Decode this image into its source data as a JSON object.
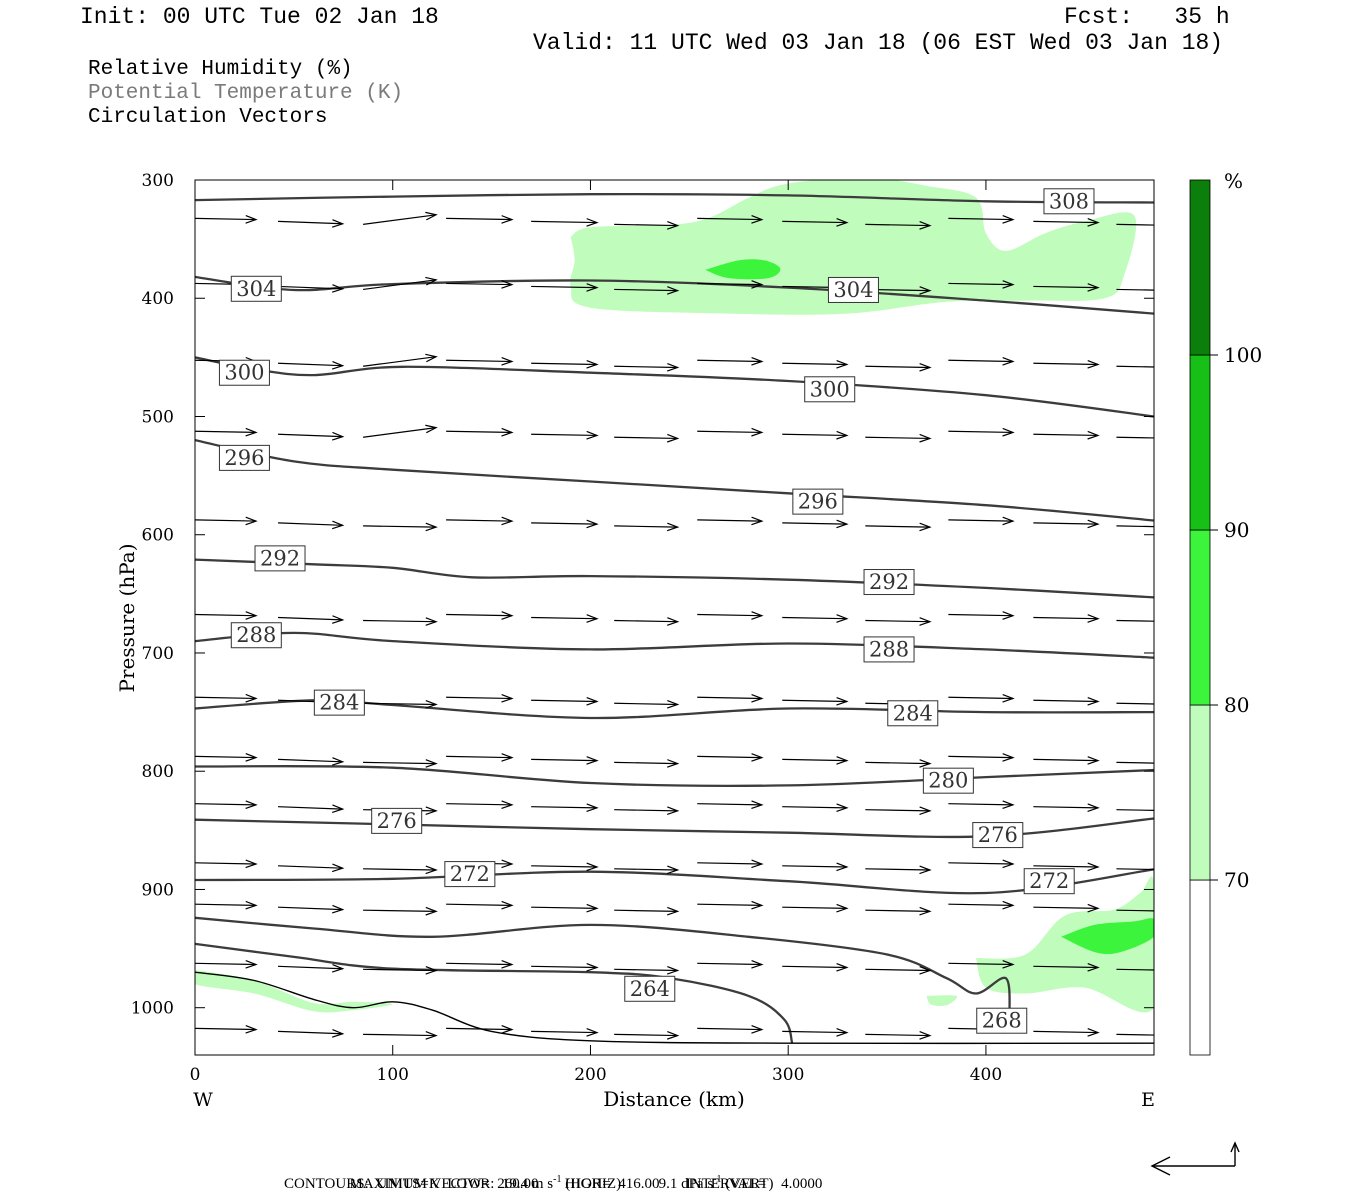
{
  "header": {
    "init": "Init: 00 UTC Tue 02 Jan 18",
    "fcst": "Fcst:   35 h",
    "valid": "Valid: 11 UTC Wed 03 Jan 18 (06 EST Wed 03 Jan 18)"
  },
  "legend": {
    "rh": "Relative Humidity (%)",
    "theta": "Potential Temperature (K)",
    "vectors": "Circulation Vectors"
  },
  "footer": {
    "max_vector_label": "MAXIMUM VECTOR:",
    "horiz_value": "19.4 m s",
    "horiz_tag": "(HORIZ)",
    "vert_value": "9.1 dPa s",
    "vert_tag": "(VERT)",
    "exponent": "-1",
    "contours": "CONTOURS:  UNITS=K  LOW=  260.00       HIGH=  416.00       INTERVAL=    4.0000"
  },
  "colors": {
    "rh70": "#c0fcbc",
    "rh80": "#3cf43c",
    "rh90": "#16c016",
    "rh100": "#0c7e0c",
    "contour": "#3c3c3c"
  },
  "chart_data": {
    "type": "cross-section",
    "xlabel": "Distance (km)",
    "ylabel": "Pressure (hPa)",
    "xlim": [
      0,
      485
    ],
    "ylim": [
      1040,
      300
    ],
    "x_ticks": [
      "0",
      "100",
      "200",
      "300",
      "400"
    ],
    "x_tick_values": [
      0,
      100,
      200,
      300,
      400
    ],
    "y_ticks": [
      "300",
      "400",
      "500",
      "600",
      "700",
      "800",
      "900",
      "1000"
    ],
    "y_tick_values": [
      300,
      400,
      500,
      600,
      700,
      800,
      900,
      1000
    ],
    "west_label": "W",
    "east_label": "E",
    "colorbar": {
      "unit": "%",
      "levels": [
        "70",
        "80",
        "90",
        "100"
      ],
      "level_values": [
        70,
        80,
        90,
        100
      ]
    },
    "isentropes": [
      {
        "label": "308",
        "points": [
          [
            0,
            317
          ],
          [
            100,
            314
          ],
          [
            200,
            312
          ],
          [
            300,
            313
          ],
          [
            400,
            318
          ],
          [
            485,
            319
          ]
        ],
        "label_at": [
          442,
          318
        ]
      },
      {
        "label": "304",
        "points": [
          [
            0,
            382
          ],
          [
            50,
            393
          ],
          [
            100,
            388
          ],
          [
            200,
            385
          ],
          [
            300,
            391
          ],
          [
            400,
            402
          ],
          [
            485,
            413
          ]
        ],
        "label_at": [
          31,
          392
        ],
        "label2": "304",
        "label2_at": [
          333,
          393
        ]
      },
      {
        "label": "300",
        "points": [
          [
            0,
            450
          ],
          [
            30,
            460
          ],
          [
            60,
            465
          ],
          [
            105,
            458
          ],
          [
            200,
            463
          ],
          [
            300,
            470
          ],
          [
            400,
            482
          ],
          [
            485,
            500
          ]
        ],
        "label_at": [
          25,
          463
        ],
        "label2": "300",
        "label2_at": [
          321,
          477
        ]
      },
      {
        "label": "296",
        "points": [
          [
            0,
            520
          ],
          [
            50,
            538
          ],
          [
            100,
            545
          ],
          [
            200,
            555
          ],
          [
            300,
            565
          ],
          [
            400,
            575
          ],
          [
            485,
            588
          ]
        ],
        "label_at": [
          25,
          535
        ],
        "label2": "296",
        "label2_at": [
          315,
          572
        ]
      },
      {
        "label": "292",
        "points": [
          [
            0,
            621
          ],
          [
            60,
            625
          ],
          [
            100,
            628
          ],
          [
            140,
            636
          ],
          [
            200,
            635
          ],
          [
            300,
            638
          ],
          [
            400,
            645
          ],
          [
            485,
            653
          ]
        ],
        "label_at": [
          43,
          620
        ],
        "label2": "292",
        "label2_at": [
          351,
          640
        ]
      },
      {
        "label": "288",
        "points": [
          [
            0,
            690
          ],
          [
            50,
            683
          ],
          [
            100,
            690
          ],
          [
            200,
            697
          ],
          [
            300,
            692
          ],
          [
            400,
            697
          ],
          [
            485,
            704
          ]
        ],
        "label_at": [
          31,
          685
        ],
        "label2": "288",
        "label2_at": [
          351,
          697
        ]
      },
      {
        "label": "284",
        "points": [
          [
            0,
            747
          ],
          [
            60,
            740
          ],
          [
            100,
            744
          ],
          [
            200,
            755
          ],
          [
            300,
            747
          ],
          [
            400,
            750
          ],
          [
            485,
            750
          ]
        ],
        "label_at": [
          73,
          742
        ],
        "label2": "284",
        "label2_at": [
          363,
          751
        ]
      },
      {
        "label": "280",
        "points": [
          [
            0,
            796
          ],
          [
            100,
            797
          ],
          [
            200,
            810
          ],
          [
            300,
            812
          ],
          [
            400,
            805
          ],
          [
            485,
            799
          ]
        ],
        "label_at": [
          381,
          808
        ]
      },
      {
        "label": "276",
        "points": [
          [
            0,
            841
          ],
          [
            100,
            845
          ],
          [
            200,
            849
          ],
          [
            300,
            852
          ],
          [
            400,
            855
          ],
          [
            485,
            840
          ]
        ],
        "label_at": [
          102,
          842
        ],
        "label2": "276",
        "label2_at": [
          406,
          854
        ]
      },
      {
        "label": "272",
        "points": [
          [
            0,
            892
          ],
          [
            100,
            891
          ],
          [
            200,
            885
          ],
          [
            300,
            893
          ],
          [
            400,
            903
          ],
          [
            485,
            883
          ]
        ],
        "label_at": [
          139,
          887
        ],
        "label2": "272",
        "label2_at": [
          432,
          893
        ]
      },
      {
        "label": "268",
        "points": [
          [
            0,
            924
          ],
          [
            60,
            933
          ],
          [
            120,
            940
          ],
          [
            200,
            930
          ],
          [
            280,
            940
          ],
          [
            350,
            955
          ],
          [
            380,
            975
          ],
          [
            395,
            988
          ],
          [
            410,
            975
          ],
          [
            412,
            1005
          ]
        ],
        "label_at": [
          408,
          1011
        ]
      },
      {
        "label": "264",
        "points": [
          [
            0,
            946
          ],
          [
            50,
            957
          ],
          [
            100,
            967
          ],
          [
            200,
            970
          ],
          [
            240,
            975
          ],
          [
            280,
            990
          ],
          [
            298,
            1010
          ],
          [
            302,
            1030
          ]
        ],
        "label_at": [
          230,
          984
        ]
      },
      {
        "label": "",
        "points": [
          [
            0,
            970
          ],
          [
            30,
            977
          ],
          [
            60,
            993
          ],
          [
            80,
            1000
          ],
          [
            100,
            995
          ],
          [
            120,
            1002
          ],
          [
            150,
            1020
          ],
          [
            200,
            1028
          ],
          [
            300,
            1030
          ],
          [
            485,
            1030
          ]
        ]
      }
    ],
    "rh_regions": [
      {
        "level": "70-80",
        "points": [
          [
            190,
            348
          ],
          [
            200,
            340
          ],
          [
            240,
            338
          ],
          [
            260,
            332
          ],
          [
            280,
            315
          ],
          [
            300,
            303
          ],
          [
            340,
            298
          ],
          [
            370,
            305
          ],
          [
            395,
            315
          ],
          [
            400,
            345
          ],
          [
            410,
            360
          ],
          [
            430,
            345
          ],
          [
            450,
            335
          ],
          [
            475,
            330
          ],
          [
            470,
            380
          ],
          [
            460,
            400
          ],
          [
            420,
            402
          ],
          [
            380,
            403
          ],
          [
            330,
            413
          ],
          [
            270,
            413
          ],
          [
            200,
            408
          ],
          [
            190,
            390
          ],
          [
            192,
            368
          ]
        ]
      },
      {
        "level": "80-90",
        "points": [
          [
            258,
            376
          ],
          [
            275,
            368
          ],
          [
            288,
            368
          ],
          [
            296,
            375
          ],
          [
            290,
            383
          ],
          [
            270,
            383
          ]
        ]
      },
      {
        "level": "70-80",
        "points": [
          [
            395,
            958
          ],
          [
            420,
            955
          ],
          [
            440,
            922
          ],
          [
            465,
            917
          ],
          [
            478,
            903
          ],
          [
            485,
            895
          ],
          [
            485,
            1000
          ],
          [
            450,
            983
          ],
          [
            420,
            988
          ],
          [
            400,
            983
          ]
        ]
      },
      {
        "level": "80-90",
        "points": [
          [
            438,
            940
          ],
          [
            455,
            930
          ],
          [
            475,
            927
          ],
          [
            485,
            925
          ],
          [
            485,
            940
          ],
          [
            468,
            953
          ],
          [
            455,
            953
          ]
        ]
      },
      {
        "level": "70-80",
        "points": [
          [
            0,
            968
          ],
          [
            30,
            977
          ],
          [
            60,
            996
          ],
          [
            80,
            995
          ],
          [
            100,
            997
          ],
          [
            80,
            1002
          ],
          [
            60,
            1003
          ],
          [
            30,
            988
          ],
          [
            0,
            980
          ]
        ]
      },
      {
        "level": "70-80",
        "points": [
          [
            370,
            990
          ],
          [
            385,
            990
          ],
          [
            380,
            998
          ],
          [
            372,
            997
          ]
        ]
      }
    ],
    "vectors": [
      {
        "p": 335,
        "u": [
          10,
          16,
          30,
          18,
          18,
          14,
          16,
          16,
          16,
          16,
          16,
          16
        ]
      },
      {
        "p": 390,
        "u": [
          10,
          16,
          30,
          18,
          18,
          14,
          16,
          16,
          16,
          16,
          16,
          16
        ]
      },
      {
        "p": 455,
        "u": [
          10,
          16,
          30,
          18,
          18,
          14,
          16,
          16,
          16,
          16,
          16,
          16
        ]
      },
      {
        "p": 515,
        "u": [
          10,
          16,
          30,
          18,
          18,
          14,
          16,
          16,
          16,
          16,
          16,
          16
        ]
      },
      {
        "p": 590,
        "u": [
          10,
          16,
          30,
          18,
          18,
          14,
          16,
          16,
          16,
          16,
          16,
          16
        ]
      },
      {
        "p": 670,
        "u": [
          10,
          16,
          30,
          18,
          18,
          14,
          16,
          16,
          16,
          16,
          16,
          16
        ]
      },
      {
        "p": 740,
        "u": [
          10,
          16,
          30,
          18,
          18,
          14,
          16,
          16,
          16,
          16,
          16,
          16
        ]
      },
      {
        "p": 790,
        "u": [
          10,
          16,
          30,
          18,
          18,
          14,
          16,
          16,
          16,
          16,
          16,
          16
        ]
      },
      {
        "p": 830,
        "u": [
          10,
          16,
          30,
          18,
          18,
          14,
          16,
          16,
          16,
          16,
          16,
          16
        ]
      },
      {
        "p": 880,
        "u": [
          10,
          16,
          30,
          18,
          18,
          14,
          16,
          16,
          16,
          16,
          16,
          16
        ]
      },
      {
        "p": 915,
        "u": [
          10,
          16,
          30,
          18,
          18,
          14,
          16,
          16,
          16,
          16,
          16,
          16
        ]
      },
      {
        "p": 965,
        "u": [
          10,
          16,
          30,
          18,
          18,
          14,
          16,
          16,
          16,
          16,
          16,
          16
        ]
      },
      {
        "p": 1020,
        "u": [
          10,
          16,
          30,
          18,
          18,
          14,
          16,
          16,
          16,
          16,
          16,
          16
        ]
      }
    ]
  }
}
